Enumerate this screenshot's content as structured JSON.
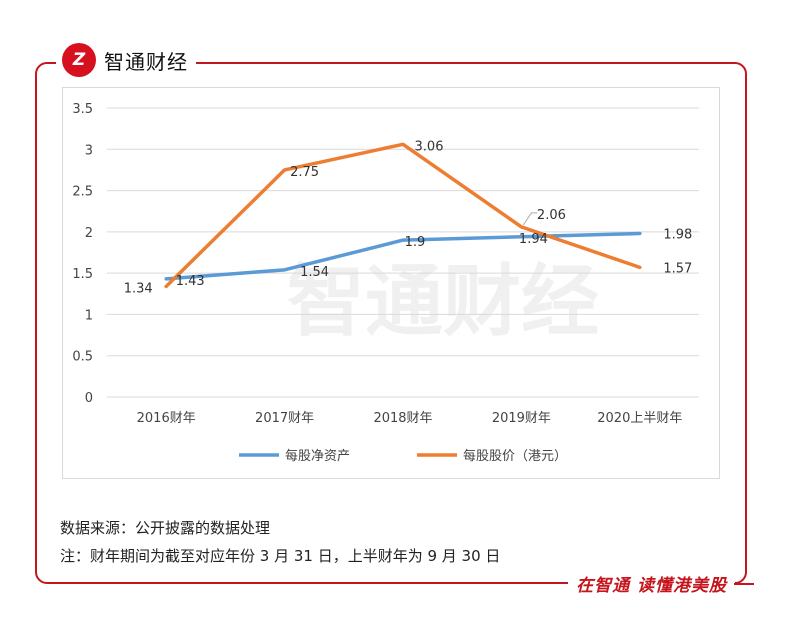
{
  "brand": {
    "logo_text": "Z",
    "name": "智通财经"
  },
  "footer": {
    "source": "数据来源：公开披露的数据处理",
    "note": "注：财年期间为截至对应年份 3 月 31 日，上半财年为 9 月 30 日",
    "slogan": "在智通  读懂港美股"
  },
  "watermark": "智通财经",
  "chart_data": {
    "type": "line",
    "categories": [
      "2016财年",
      "2017财年",
      "2018财年",
      "2019财年",
      "2020上半财年"
    ],
    "yticks": [
      "0",
      "0.5",
      "1",
      "1.5",
      "2",
      "2.5",
      "3",
      "3.5"
    ],
    "ylim": [
      0,
      3.5
    ],
    "grid": true,
    "legend_position": "bottom",
    "series": [
      {
        "name": "每股净资产",
        "color": "#5b9bd5",
        "values": [
          1.43,
          1.54,
          1.9,
          1.94,
          1.98
        ],
        "labels": [
          "1.43",
          "1.54",
          "1.9",
          "1.94",
          "1.98"
        ]
      },
      {
        "name": "每股股价（港元）",
        "color": "#ed7d31",
        "values": [
          1.34,
          2.75,
          3.06,
          2.06,
          1.57
        ],
        "labels": [
          "1.34",
          "2.75",
          "3.06",
          "2.06",
          "1.57"
        ]
      }
    ]
  }
}
